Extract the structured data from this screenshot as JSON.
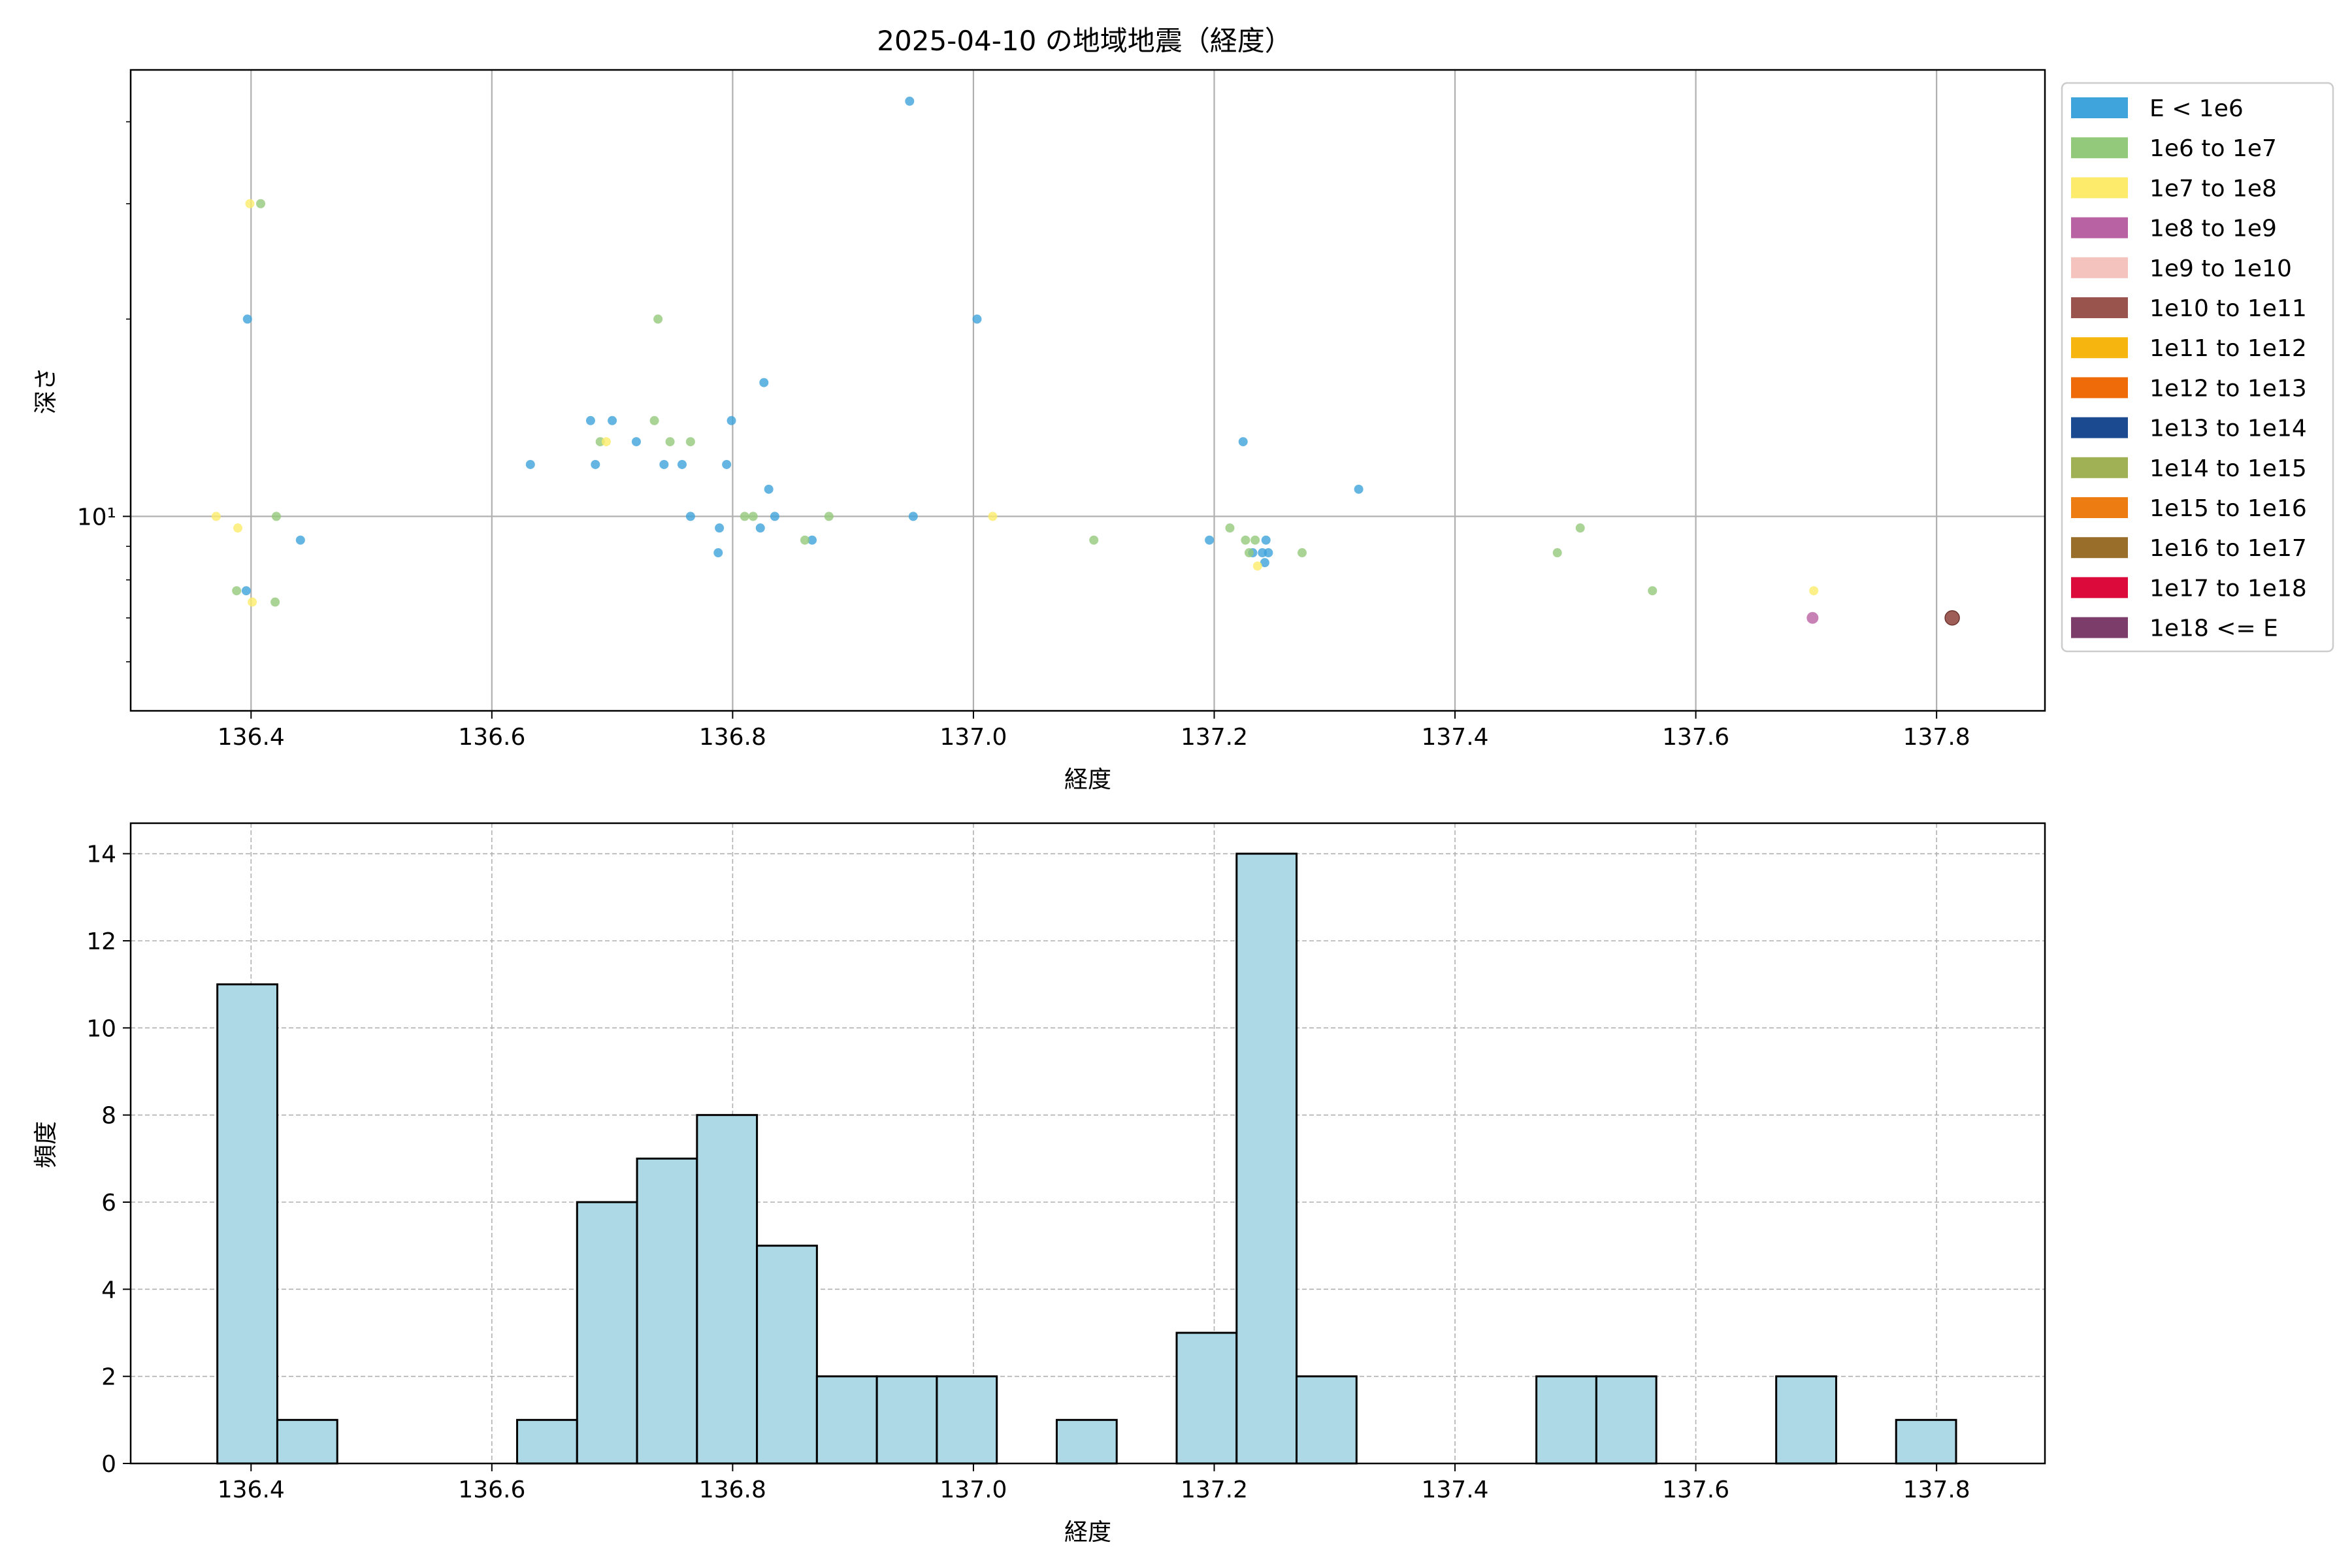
{
  "title": "2025-04-10 の地域地震（経度）",
  "chart_data": [
    {
      "type": "scatter",
      "xlabel": "経度",
      "ylabel": "深さ",
      "xlim": [
        136.3,
        137.89
      ],
      "ylim": [
        5.05,
        48
      ],
      "yscale": "log",
      "xticks": [
        136.4,
        136.6,
        136.8,
        137.0,
        137.2,
        137.4,
        137.6,
        137.8
      ],
      "xtick_labels": [
        "136.4",
        "136.6",
        "136.8",
        "137.0",
        "137.2",
        "137.4",
        "137.6",
        "137.8"
      ],
      "yticks": [
        10
      ],
      "ytick_labels": [
        "10¹"
      ],
      "y_minor_ticks": [
        6,
        7,
        8,
        9,
        20,
        30,
        40
      ],
      "grid": true,
      "legend_position": "outside right top",
      "series": [
        {
          "name": "E < 1e6",
          "color": "#3fa3dc",
          "points": [
            [
              136.947,
              43
            ],
            [
              136.397,
              20
            ],
            [
              137.003,
              20
            ],
            [
              136.826,
              16
            ],
            [
              136.682,
              14
            ],
            [
              136.7,
              14
            ],
            [
              136.799,
              14
            ],
            [
              137.224,
              13
            ],
            [
              136.72,
              13
            ],
            [
              136.632,
              12
            ],
            [
              136.686,
              12
            ],
            [
              136.743,
              12
            ],
            [
              136.758,
              12
            ],
            [
              136.795,
              12
            ],
            [
              136.83,
              11
            ],
            [
              137.32,
              11
            ],
            [
              136.765,
              10
            ],
            [
              136.835,
              10
            ],
            [
              136.95,
              10
            ],
            [
              136.789,
              9.6
            ],
            [
              136.823,
              9.6
            ],
            [
              136.441,
              9.2
            ],
            [
              136.866,
              9.2
            ],
            [
              137.196,
              9.2
            ],
            [
              137.243,
              9.2
            ],
            [
              136.788,
              8.8
            ],
            [
              137.232,
              8.8
            ],
            [
              137.24,
              8.8
            ],
            [
              137.245,
              8.8
            ],
            [
              137.242,
              8.5
            ],
            [
              136.396,
              7.7
            ]
          ]
        },
        {
          "name": "1e6 to 1e7",
          "color": "#93c97a",
          "points": [
            [
              136.408,
              30
            ],
            [
              136.738,
              20
            ],
            [
              136.735,
              14
            ],
            [
              136.69,
              13
            ],
            [
              136.748,
              13
            ],
            [
              136.765,
              13
            ],
            [
              136.421,
              10
            ],
            [
              136.81,
              10
            ],
            [
              136.817,
              10
            ],
            [
              136.88,
              10
            ],
            [
              137.213,
              9.6
            ],
            [
              137.504,
              9.6
            ],
            [
              136.86,
              9.2
            ],
            [
              137.1,
              9.2
            ],
            [
              137.226,
              9.2
            ],
            [
              137.234,
              9.2
            ],
            [
              137.229,
              8.8
            ],
            [
              137.273,
              8.8
            ],
            [
              137.485,
              8.8
            ],
            [
              136.388,
              7.7
            ],
            [
              137.564,
              7.7
            ],
            [
              136.42,
              7.4
            ]
          ]
        },
        {
          "name": "1e7 to 1e8",
          "color": "#fdec6c",
          "points": [
            [
              136.399,
              30
            ],
            [
              136.695,
              13
            ],
            [
              136.371,
              10
            ],
            [
              137.016,
              10
            ],
            [
              136.389,
              9.6
            ],
            [
              137.236,
              8.4
            ],
            [
              137.698,
              7.7
            ],
            [
              136.401,
              7.4
            ]
          ]
        },
        {
          "name": "1e8 to 1e9",
          "color": "#b962a3",
          "points": [
            [
              137.697,
              7.0
            ]
          ]
        },
        {
          "name": "1e10 to 1e11",
          "color": "#9a544e",
          "points": [
            [
              137.813,
              7.0
            ]
          ]
        }
      ],
      "legend": [
        {
          "label": "E < 1e6",
          "color": "#3fa3dc"
        },
        {
          "label": "1e6 to 1e7",
          "color": "#93c97a"
        },
        {
          "label": "1e7 to 1e8",
          "color": "#fdec6c"
        },
        {
          "label": "1e8 to 1e9",
          "color": "#b962a3"
        },
        {
          "label": "1e9 to 1e10",
          "color": "#f5c3be"
        },
        {
          "label": "1e10 to 1e11",
          "color": "#9a544e"
        },
        {
          "label": "1e11 to 1e12",
          "color": "#f7b50f"
        },
        {
          "label": "1e12 to 1e13",
          "color": "#ef6a09"
        },
        {
          "label": "1e13 to 1e14",
          "color": "#1c4a91"
        },
        {
          "label": "1e14 to 1e15",
          "color": "#9fb055"
        },
        {
          "label": "1e15 to 1e16",
          "color": "#ed7d12"
        },
        {
          "label": "1e16 to 1e17",
          "color": "#996d2a"
        },
        {
          "label": "1e17 to 1e18",
          "color": "#db0a3a"
        },
        {
          "label": "1e18 <= E",
          "color": "#7d3d6b"
        }
      ]
    },
    {
      "type": "bar",
      "xlabel": "経度",
      "ylabel": "頻度",
      "xlim": [
        136.3,
        137.89
      ],
      "ylim": [
        0,
        14.7
      ],
      "xticks": [
        136.4,
        136.6,
        136.8,
        137.0,
        137.2,
        137.4,
        137.6,
        137.8
      ],
      "xtick_labels": [
        "136.4",
        "136.6",
        "136.8",
        "137.0",
        "137.2",
        "137.4",
        "137.6",
        "137.8"
      ],
      "yticks": [
        0,
        2,
        4,
        6,
        8,
        10,
        12,
        14
      ],
      "ytick_labels": [
        "0",
        "2",
        "4",
        "6",
        "8",
        "10",
        "12",
        "14"
      ],
      "grid": true,
      "bar_color": "#add8e6",
      "edge_color": "#000000",
      "bin_start": 136.372,
      "bin_width": 0.0498,
      "values": [
        11,
        1,
        0,
        0,
        0,
        1,
        6,
        7,
        8,
        5,
        2,
        2,
        2,
        0,
        1,
        0,
        3,
        14,
        2,
        0,
        0,
        0,
        2,
        2,
        0,
        0,
        2,
        0,
        1
      ]
    }
  ]
}
